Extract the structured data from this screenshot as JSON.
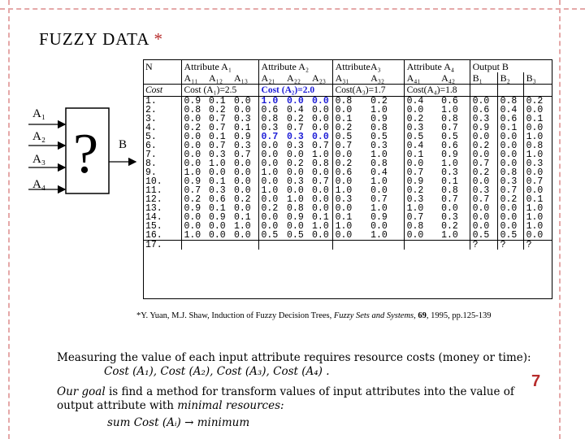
{
  "title": "FUZZY  DATA",
  "title_star": "*",
  "diagram": {
    "inputs": [
      "A₁",
      "A₂",
      "A₃",
      "A₄"
    ],
    "output": "B",
    "box_symbol": "?"
  },
  "table": {
    "header1": [
      "N",
      "Attribute  A₁",
      "Attribute  A₂",
      "AttributeA₃",
      "Attribute  A₄",
      "Output  B"
    ],
    "header2": [
      "A₁₁",
      "A₁₂",
      "A₁₃",
      "A₂₁",
      "A₂₂",
      "A₂₃",
      "A₃₁",
      "A₃₂",
      "A₄₁",
      "A₄₂",
      "B₁",
      "B₂",
      "B₃"
    ],
    "cost_label": "Cost",
    "costs": [
      "Cost (A₁)=2.5",
      "Cost (A₂)=2.0",
      "Cost(A₃)=1.7",
      "Cost(A₄)=1.8"
    ],
    "rows": [
      {
        "n": "1.",
        "v": [
          "0.9",
          "0.1",
          "0.0",
          "1.0",
          "0.0",
          "0.0",
          "0.8",
          "0.2",
          "0.4",
          "0.6",
          "0.0",
          "0.8",
          "0.2"
        ]
      },
      {
        "n": "2.",
        "v": [
          "0.8",
          "0.2",
          "0.0",
          "0.6",
          "0.4",
          "0.0",
          "0.0",
          "1.0",
          "0.0",
          "1.0",
          "0.6",
          "0.4",
          "0.0"
        ]
      },
      {
        "n": "3.",
        "v": [
          "0.0",
          "0.7",
          "0.3",
          "0.8",
          "0.2",
          "0.0",
          "0.1",
          "0.9",
          "0.2",
          "0.8",
          "0.3",
          "0.6",
          "0.1"
        ]
      },
      {
        "n": "4.",
        "v": [
          "0.2",
          "0.7",
          "0.1",
          "0.3",
          "0.7",
          "0.0",
          "0.2",
          "0.8",
          "0.3",
          "0.7",
          "0.9",
          "0.1",
          "0.0"
        ]
      },
      {
        "n": "5.",
        "v": [
          "0.0",
          "0.1",
          "0.9",
          "0.7",
          "0.3",
          "0.0",
          "0.5",
          "0.5",
          "0.5",
          "0.5",
          "0.0",
          "0.0",
          "1.0"
        ]
      },
      {
        "n": "6.",
        "v": [
          "0.0",
          "0.7",
          "0.3",
          "0.0",
          "0.3",
          "0.7",
          "0.7",
          "0.3",
          "0.4",
          "0.6",
          "0.2",
          "0.0",
          "0.8"
        ]
      },
      {
        "n": "7.",
        "v": [
          "0.0",
          "0.3",
          "0.7",
          "0.0",
          "0.0",
          "1.0",
          "0.0",
          "1.0",
          "0.1",
          "0.9",
          "0.0",
          "0.0",
          "1.0"
        ]
      },
      {
        "n": "8.",
        "v": [
          "0.0",
          "1.0",
          "0.0",
          "0.0",
          "0.2",
          "0.8",
          "0.2",
          "0.8",
          "0.0",
          "1.0",
          "0.7",
          "0.0",
          "0.3"
        ]
      },
      {
        "n": "9.",
        "v": [
          "1.0",
          "0.0",
          "0.0",
          "1.0",
          "0.0",
          "0.0",
          "0.6",
          "0.4",
          "0.7",
          "0.3",
          "0.2",
          "0.8",
          "0.0"
        ]
      },
      {
        "n": "10.",
        "v": [
          "0.9",
          "0.1",
          "0.0",
          "0.0",
          "0.3",
          "0.7",
          "0.0",
          "1.0",
          "0.9",
          "0.1",
          "0.0",
          "0.3",
          "0.7"
        ]
      },
      {
        "n": "11.",
        "v": [
          "0.7",
          "0.3",
          "0.0",
          "1.0",
          "0.0",
          "0.0",
          "1.0",
          "0.0",
          "0.2",
          "0.8",
          "0.3",
          "0.7",
          "0.0"
        ]
      },
      {
        "n": "12.",
        "v": [
          "0.2",
          "0.6",
          "0.2",
          "0.0",
          "1.0",
          "0.0",
          "0.3",
          "0.7",
          "0.3",
          "0.7",
          "0.7",
          "0.2",
          "0.1"
        ]
      },
      {
        "n": "13.",
        "v": [
          "0.9",
          "0.1",
          "0.0",
          "0.2",
          "0.8",
          "0.0",
          "0.0",
          "1.0",
          "1.0",
          "0.0",
          "0.0",
          "0.0",
          "1.0"
        ]
      },
      {
        "n": "14.",
        "v": [
          "0.0",
          "0.9",
          "0.1",
          "0.0",
          "0.9",
          "0.1",
          "0.1",
          "0.9",
          "0.7",
          "0.3",
          "0.0",
          "0.0",
          "1.0"
        ]
      },
      {
        "n": "15.",
        "v": [
          "0.0",
          "0.0",
          "1.0",
          "0.0",
          "0.0",
          "1.0",
          "1.0",
          "0.0",
          "0.8",
          "0.2",
          "0.0",
          "0.0",
          "1.0"
        ]
      },
      {
        "n": "16.",
        "v": [
          "1.0",
          "0.0",
          "0.0",
          "0.5",
          "0.5",
          "0.0",
          "0.0",
          "1.0",
          "0.0",
          "1.0",
          "0.5",
          "0.5",
          "0.0"
        ]
      },
      {
        "n": "17.",
        "v": [
          "",
          "",
          "",
          "",
          "",
          "",
          "",
          "",
          "",
          "",
          "?",
          "?",
          "?"
        ]
      }
    ]
  },
  "citation": {
    "prefix": "*Y. Yuan, M.J. Shaw, Induction of Fuzzy Decision Trees, ",
    "journal": "Fuzzy Sets and Systems",
    "sep": ", ",
    "volume": "69",
    "suffix": ", 1995, pp.125-139"
  },
  "text": {
    "line1": "Measuring the value of each input attribute requires resource costs (money or time):",
    "line2": "Cost (A₁), Cost (A₂), Cost (A₃), Cost (A₄) .",
    "line3_em": "Our goal",
    "line3_rest": " is find a method for transform values of input attributes into the value of",
    "line4_start": "output attribute with ",
    "line4_em": "minimal resources:",
    "line5": "sum Cost (Aᵢ) → minimum"
  },
  "page_number": "7",
  "colors": {
    "accent": "#b72c2c",
    "highlight": "#1c1cd6",
    "border_dash": "#e5a8a8"
  }
}
